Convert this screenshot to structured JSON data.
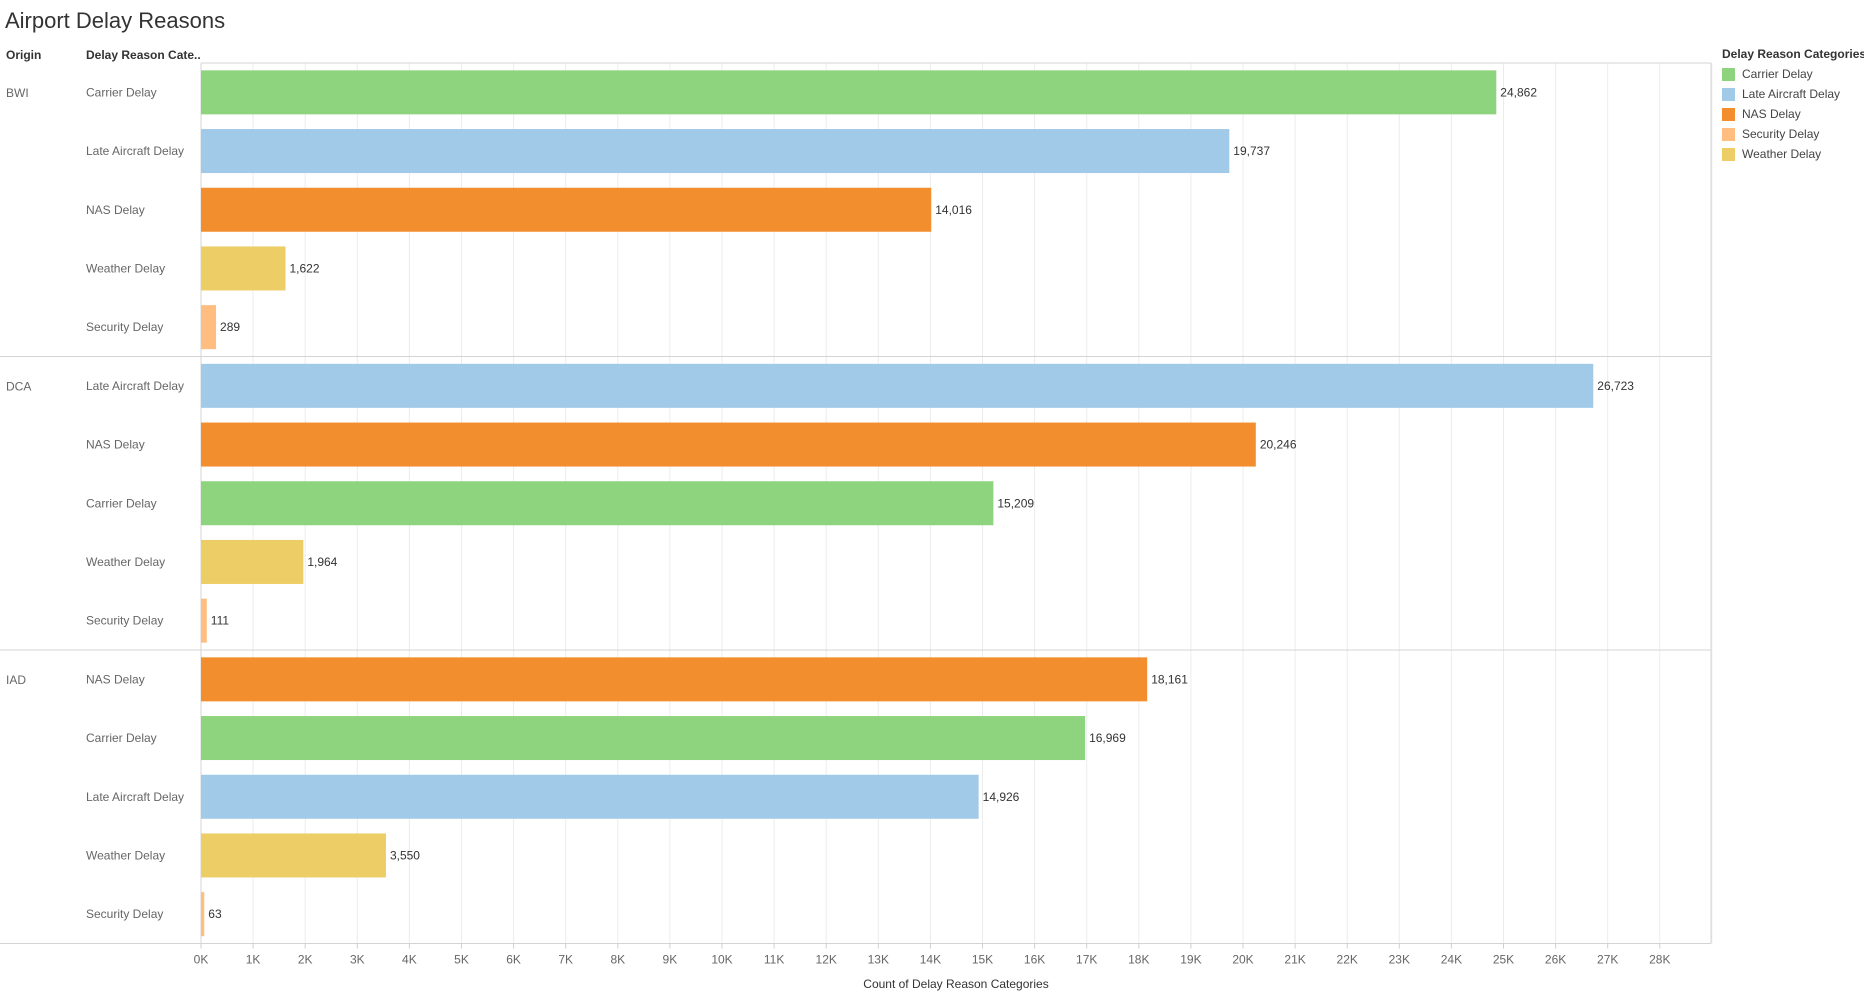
{
  "title": "Airport Delay Reasons",
  "columns": {
    "origin": "Origin",
    "category": "Delay Reason Cate.."
  },
  "legend": {
    "title": "Delay Reason Categories",
    "items": [
      {
        "label": "Carrier Delay",
        "color": "#8ed37e"
      },
      {
        "label": "Late Aircraft Delay",
        "color": "#a0cae8"
      },
      {
        "label": "NAS Delay",
        "color": "#f28e2d"
      },
      {
        "label": "Security Delay",
        "color": "#ffbd7f"
      },
      {
        "label": "Weather Delay",
        "color": "#edcd65"
      }
    ]
  },
  "chart_data": {
    "type": "bar",
    "orientation": "horizontal",
    "xlabel": "Count of Delay Reason Categories",
    "xlim": [
      0,
      29000
    ],
    "xticks": [
      "0K",
      "1K",
      "2K",
      "3K",
      "4K",
      "5K",
      "6K",
      "7K",
      "8K",
      "9K",
      "10K",
      "11K",
      "12K",
      "13K",
      "14K",
      "15K",
      "16K",
      "17K",
      "18K",
      "19K",
      "20K",
      "21K",
      "22K",
      "23K",
      "24K",
      "25K",
      "26K",
      "27K",
      "28K"
    ],
    "gridlines": "vertical",
    "legend_position": "top-right",
    "groups": [
      {
        "origin": "BWI",
        "bars": [
          {
            "category": "Carrier Delay",
            "value": 24862,
            "label": "24,862"
          },
          {
            "category": "Late Aircraft Delay",
            "value": 19737,
            "label": "19,737"
          },
          {
            "category": "NAS Delay",
            "value": 14016,
            "label": "14,016"
          },
          {
            "category": "Weather Delay",
            "value": 1622,
            "label": "1,622"
          },
          {
            "category": "Security Delay",
            "value": 289,
            "label": "289"
          }
        ]
      },
      {
        "origin": "DCA",
        "bars": [
          {
            "category": "Late Aircraft Delay",
            "value": 26723,
            "label": "26,723"
          },
          {
            "category": "NAS Delay",
            "value": 20246,
            "label": "20,246"
          },
          {
            "category": "Carrier Delay",
            "value": 15209,
            "label": "15,209"
          },
          {
            "category": "Weather Delay",
            "value": 1964,
            "label": "1,964"
          },
          {
            "category": "Security Delay",
            "value": 111,
            "label": "111"
          }
        ]
      },
      {
        "origin": "IAD",
        "bars": [
          {
            "category": "NAS Delay",
            "value": 18161,
            "label": "18,161"
          },
          {
            "category": "Carrier Delay",
            "value": 16969,
            "label": "16,969"
          },
          {
            "category": "Late Aircraft Delay",
            "value": 14926,
            "label": "14,926"
          },
          {
            "category": "Weather Delay",
            "value": 3550,
            "label": "3,550"
          },
          {
            "category": "Security Delay",
            "value": 63,
            "label": "63"
          }
        ]
      }
    ]
  }
}
